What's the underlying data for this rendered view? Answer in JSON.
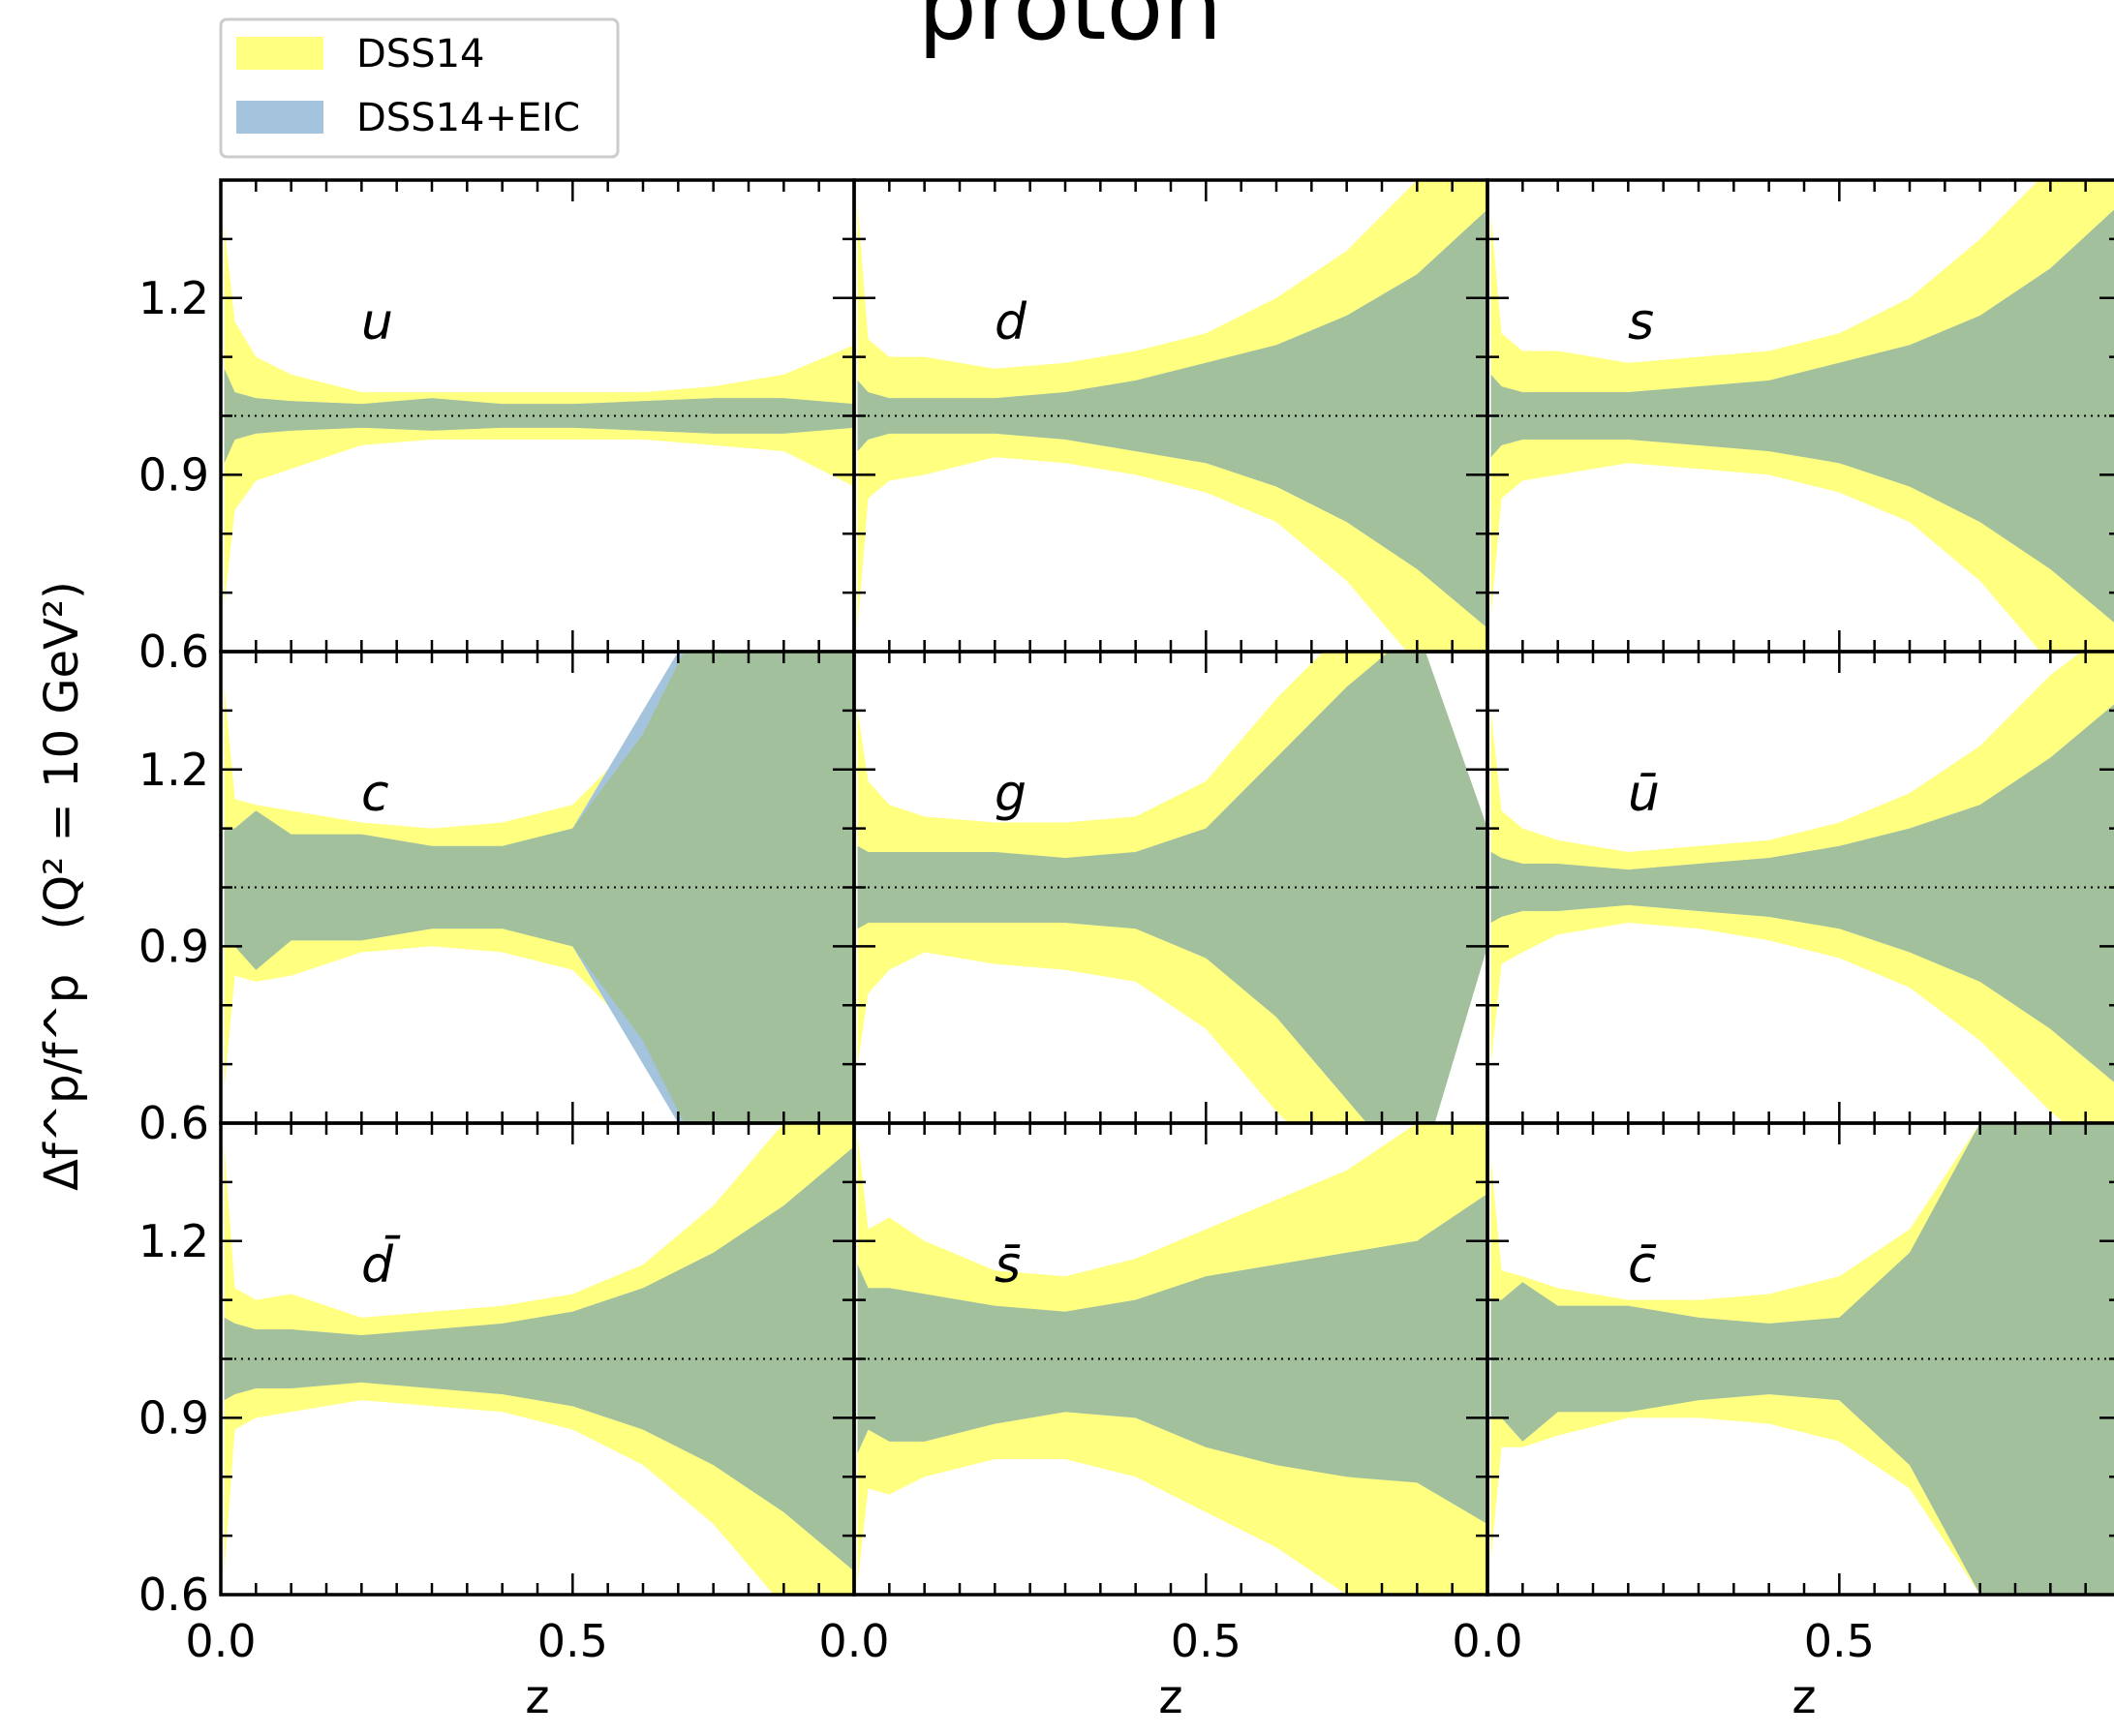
{
  "figure": {
    "title": "proton",
    "ylabel_main": "Δf^p/f^p",
    "ylabel_paren": "(Q² = 10 GeV²)",
    "xlabel": "z"
  },
  "colors": {
    "dss14": "#ffff80",
    "dss14_eic": "#a3c4dc",
    "overlap": "#a2c09c",
    "axis": "#000000",
    "reference_line": "#000000"
  },
  "legend": {
    "placement": "top-left",
    "items": [
      {
        "label": "DSS14",
        "color": "#ffff80"
      },
      {
        "label": "DSS14+EIC",
        "color": "#a3c4dc"
      }
    ]
  },
  "axes": {
    "xlim": [
      0.0,
      0.9
    ],
    "ylim": [
      0.6,
      1.4
    ],
    "x_major_ticks": [
      0.0,
      0.5
    ],
    "x_tick_labels": [
      "0.0",
      "0.5"
    ],
    "y_major_ticks": [
      0.6,
      0.9,
      1.2
    ],
    "y_tick_labels": [
      "0.6",
      "0.9",
      "1.2"
    ],
    "reference_y": 1.0,
    "grid": false,
    "minor_ticks": true
  },
  "chart_data": {
    "type": "area",
    "x": [
      0.005,
      0.02,
      0.05,
      0.1,
      0.2,
      0.3,
      0.4,
      0.5,
      0.6,
      0.7,
      0.8,
      0.9
    ],
    "panels": [
      {
        "label": "u",
        "series": [
          {
            "name": "DSS14",
            "upper": [
              1.32,
              1.16,
              1.1,
              1.07,
              1.04,
              1.04,
              1.04,
              1.04,
              1.04,
              1.05,
              1.07,
              1.12
            ],
            "lower": [
              0.68,
              0.84,
              0.89,
              0.91,
              0.95,
              0.96,
              0.96,
              0.96,
              0.96,
              0.95,
              0.94,
              0.88
            ]
          },
          {
            "name": "DSS14+EIC",
            "upper": [
              1.08,
              1.04,
              1.03,
              1.025,
              1.02,
              1.03,
              1.02,
              1.02,
              1.025,
              1.03,
              1.03,
              1.02
            ],
            "lower": [
              0.92,
              0.96,
              0.97,
              0.975,
              0.98,
              0.975,
              0.98,
              0.98,
              0.975,
              0.97,
              0.97,
              0.98
            ]
          }
        ]
      },
      {
        "label": "d",
        "series": [
          {
            "name": "DSS14",
            "upper": [
              1.36,
              1.13,
              1.1,
              1.1,
              1.08,
              1.09,
              1.11,
              1.14,
              1.2,
              1.28,
              1.4,
              1.48
            ],
            "lower": [
              0.64,
              0.86,
              0.89,
              0.9,
              0.93,
              0.92,
              0.9,
              0.87,
              0.82,
              0.72,
              0.58,
              0.48
            ]
          },
          {
            "name": "DSS14+EIC",
            "upper": [
              1.06,
              1.04,
              1.03,
              1.03,
              1.03,
              1.04,
              1.06,
              1.09,
              1.12,
              1.17,
              1.24,
              1.35
            ],
            "lower": [
              0.94,
              0.96,
              0.97,
              0.97,
              0.97,
              0.96,
              0.94,
              0.92,
              0.88,
              0.82,
              0.74,
              0.64
            ]
          }
        ]
      },
      {
        "label": "s",
        "series": [
          {
            "name": "DSS14",
            "upper": [
              1.34,
              1.14,
              1.11,
              1.11,
              1.09,
              1.1,
              1.11,
              1.14,
              1.2,
              1.3,
              1.42,
              1.5
            ],
            "lower": [
              0.66,
              0.86,
              0.89,
              0.9,
              0.92,
              0.91,
              0.9,
              0.87,
              0.82,
              0.72,
              0.58,
              0.5
            ]
          },
          {
            "name": "DSS14+EIC",
            "upper": [
              1.07,
              1.05,
              1.04,
              1.04,
              1.04,
              1.05,
              1.06,
              1.09,
              1.12,
              1.17,
              1.25,
              1.36
            ],
            "lower": [
              0.93,
              0.95,
              0.96,
              0.96,
              0.96,
              0.95,
              0.94,
              0.92,
              0.88,
              0.82,
              0.74,
              0.64
            ]
          }
        ]
      },
      {
        "label": "c",
        "series": [
          {
            "name": "DSS14",
            "upper": [
              1.34,
              1.15,
              1.14,
              1.13,
              1.11,
              1.1,
              1.11,
              1.14,
              1.26,
              1.5,
              1.6,
              1.6
            ],
            "lower": [
              0.66,
              0.85,
              0.84,
              0.85,
              0.89,
              0.9,
              0.89,
              0.86,
              0.74,
              0.5,
              0.4,
              0.4
            ]
          },
          {
            "name": "DSS14+EIC",
            "upper": [
              1.1,
              1.1,
              1.13,
              1.09,
              1.09,
              1.07,
              1.07,
              1.1,
              1.3,
              1.5,
              1.6,
              1.6
            ],
            "lower": [
              0.9,
              0.9,
              0.86,
              0.91,
              0.91,
              0.93,
              0.93,
              0.9,
              0.7,
              0.5,
              0.4,
              0.4
            ]
          }
        ]
      },
      {
        "label": "g",
        "series": [
          {
            "name": "DSS14",
            "upper": [
              1.3,
              1.18,
              1.14,
              1.12,
              1.11,
              1.11,
              1.12,
              1.18,
              1.32,
              1.44,
              1.44,
              1.1
            ],
            "lower": [
              0.7,
              0.82,
              0.86,
              0.89,
              0.87,
              0.86,
              0.84,
              0.76,
              0.62,
              0.5,
              0.5,
              0.9
            ]
          },
          {
            "name": "DSS14+EIC",
            "upper": [
              1.07,
              1.06,
              1.06,
              1.06,
              1.06,
              1.05,
              1.06,
              1.1,
              1.22,
              1.34,
              1.44,
              1.1
            ],
            "lower": [
              0.93,
              0.94,
              0.94,
              0.94,
              0.94,
              0.94,
              0.93,
              0.88,
              0.78,
              0.64,
              0.5,
              0.9
            ]
          }
        ]
      },
      {
        "label": "ū",
        "series": [
          {
            "name": "DSS14",
            "upper": [
              1.3,
              1.13,
              1.1,
              1.08,
              1.06,
              1.07,
              1.08,
              1.11,
              1.16,
              1.24,
              1.36,
              1.45
            ],
            "lower": [
              0.7,
              0.87,
              0.89,
              0.92,
              0.94,
              0.93,
              0.91,
              0.88,
              0.83,
              0.74,
              0.62,
              0.52
            ]
          },
          {
            "name": "DSS14+EIC",
            "upper": [
              1.06,
              1.05,
              1.04,
              1.04,
              1.03,
              1.04,
              1.05,
              1.07,
              1.1,
              1.14,
              1.22,
              1.32
            ],
            "lower": [
              0.94,
              0.95,
              0.96,
              0.96,
              0.97,
              0.96,
              0.95,
              0.93,
              0.89,
              0.84,
              0.76,
              0.66
            ]
          }
        ]
      },
      {
        "label": "d̄",
        "series": [
          {
            "name": "DSS14",
            "upper": [
              1.36,
              1.12,
              1.1,
              1.11,
              1.07,
              1.08,
              1.09,
              1.11,
              1.16,
              1.26,
              1.4,
              1.48
            ],
            "lower": [
              0.64,
              0.88,
              0.9,
              0.91,
              0.93,
              0.92,
              0.91,
              0.88,
              0.82,
              0.72,
              0.58,
              0.48
            ]
          },
          {
            "name": "DSS14+EIC",
            "upper": [
              1.07,
              1.06,
              1.05,
              1.05,
              1.04,
              1.05,
              1.06,
              1.08,
              1.12,
              1.18,
              1.26,
              1.36
            ],
            "lower": [
              0.93,
              0.94,
              0.95,
              0.95,
              0.96,
              0.95,
              0.94,
              0.92,
              0.88,
              0.82,
              0.74,
              0.64
            ]
          }
        ]
      },
      {
        "label": "s̄",
        "series": [
          {
            "name": "DSS14",
            "upper": [
              1.38,
              1.22,
              1.24,
              1.2,
              1.15,
              1.14,
              1.17,
              1.22,
              1.27,
              1.32,
              1.4,
              1.4
            ],
            "lower": [
              0.62,
              0.78,
              0.77,
              0.8,
              0.83,
              0.83,
              0.8,
              0.74,
              0.68,
              0.6,
              0.58,
              0.58
            ]
          },
          {
            "name": "DSS14+EIC",
            "upper": [
              1.16,
              1.12,
              1.12,
              1.11,
              1.09,
              1.08,
              1.1,
              1.14,
              1.16,
              1.18,
              1.2,
              1.28
            ],
            "lower": [
              0.84,
              0.88,
              0.86,
              0.86,
              0.89,
              0.91,
              0.9,
              0.85,
              0.82,
              0.8,
              0.79,
              0.72
            ]
          }
        ]
      },
      {
        "label": "c̄",
        "series": [
          {
            "name": "DSS14",
            "upper": [
              1.34,
              1.15,
              1.14,
              1.12,
              1.1,
              1.1,
              1.11,
              1.14,
              1.22,
              1.4,
              1.6,
              1.6
            ],
            "lower": [
              0.66,
              0.85,
              0.85,
              0.87,
              0.9,
              0.9,
              0.89,
              0.86,
              0.78,
              0.6,
              0.4,
              0.4
            ]
          },
          {
            "name": "DSS14+EIC",
            "upper": [
              1.1,
              1.1,
              1.13,
              1.09,
              1.09,
              1.07,
              1.06,
              1.07,
              1.18,
              1.4,
              1.6,
              1.6
            ],
            "lower": [
              0.9,
              0.9,
              0.86,
              0.91,
              0.91,
              0.93,
              0.94,
              0.93,
              0.82,
              0.6,
              0.4,
              0.4
            ]
          }
        ]
      }
    ]
  }
}
